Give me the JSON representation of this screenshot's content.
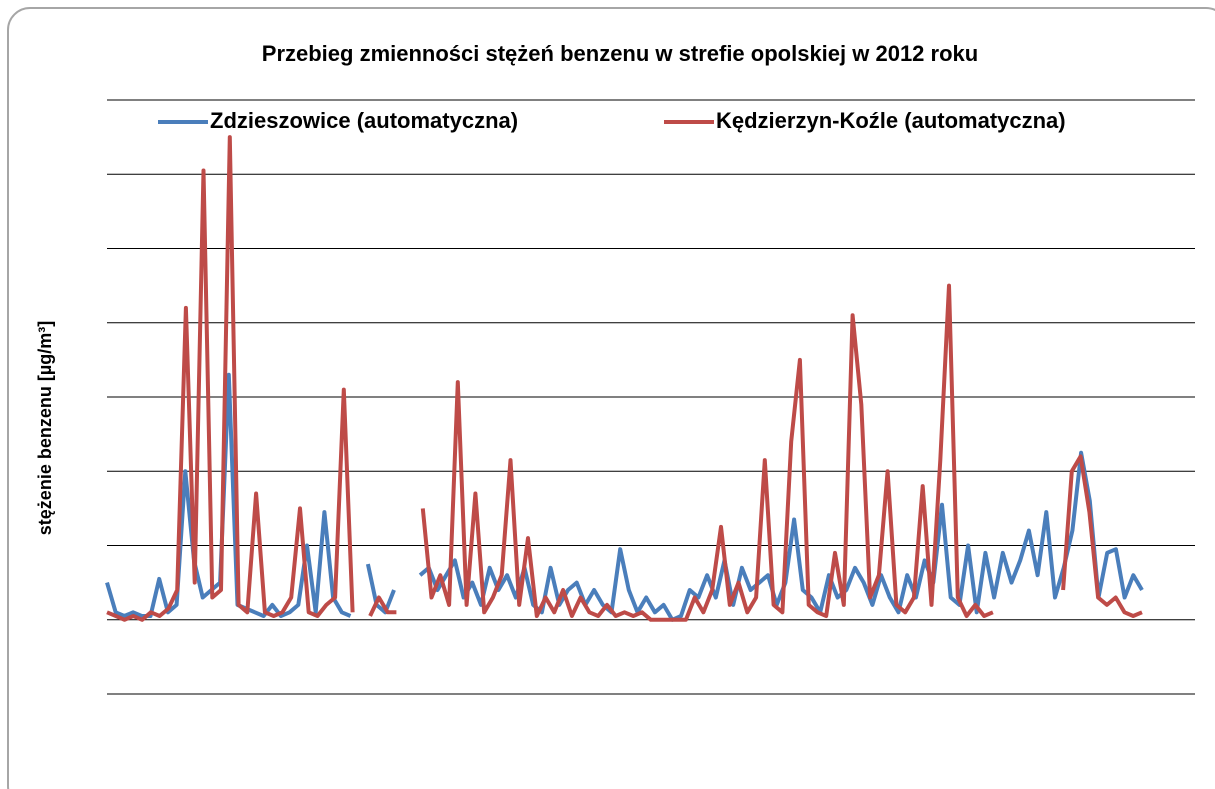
{
  "chart_data": {
    "type": "line",
    "title": "Przebieg zmienności stężeń  benzenu w strefie opolskiej w 2012 roku",
    "y_label": "stężenie benzenu [µg/m³]",
    "ylim": [
      -1,
      7
    ],
    "yticks": [
      -1,
      0,
      1,
      2,
      3,
      4,
      5,
      6,
      7
    ],
    "grid": true,
    "legend": "top",
    "series": [
      {
        "name": "Zdzieszowice (automatyczna)",
        "color": "#4a7ebb",
        "values": [
          0.5,
          0.1,
          0.05,
          0.1,
          0.05,
          0.05,
          0.55,
          0.1,
          0.2,
          2.0,
          0.8,
          0.3,
          0.4,
          0.5,
          3.3,
          0.2,
          0.15,
          0.1,
          0.05,
          0.2,
          0.05,
          0.1,
          0.2,
          1.0,
          0.1,
          1.45,
          0.3,
          0.1,
          0.05,
          null,
          0.75,
          0.2,
          0.1,
          0.4,
          null,
          null,
          0.6,
          0.7,
          0.4,
          0.6,
          0.8,
          0.3,
          0.5,
          0.2,
          0.7,
          0.4,
          0.6,
          0.3,
          0.7,
          0.2,
          0.1,
          0.7,
          0.2,
          0.4,
          0.5,
          0.2,
          0.4,
          0.2,
          0.1,
          0.95,
          0.4,
          0.1,
          0.3,
          0.1,
          0.2,
          0.0,
          0.05,
          0.4,
          0.3,
          0.6,
          0.3,
          0.8,
          0.2,
          0.7,
          0.4,
          0.5,
          0.6,
          0.2,
          0.5,
          1.35,
          0.4,
          0.3,
          0.1,
          0.6,
          0.3,
          0.4,
          0.7,
          0.5,
          0.2,
          0.6,
          0.3,
          0.1,
          0.6,
          0.3,
          0.8,
          0.5,
          1.55,
          0.3,
          0.2,
          1.0,
          0.1,
          0.9,
          0.3,
          0.9,
          0.5,
          0.8,
          1.2,
          0.6,
          1.45,
          0.3,
          0.7,
          1.2,
          2.25,
          1.6,
          0.3,
          0.9,
          0.95,
          0.3,
          0.6,
          0.4
        ]
      },
      {
        "name": "Kędzierzyn-Koźle (automatyczna)",
        "color": "#be4b48",
        "values": [
          0.1,
          0.05,
          0,
          0.05,
          0,
          0.1,
          0.05,
          0.15,
          0.4,
          4.2,
          0.5,
          6.05,
          0.3,
          0.4,
          6.5,
          0.2,
          0.1,
          1.7,
          0.1,
          0.05,
          0.1,
          0.3,
          1.5,
          0.1,
          0.05,
          0.2,
          0.3,
          3.1,
          0.1,
          null,
          0.05,
          0.3,
          0.1,
          0.1,
          null,
          null,
          1.5,
          0.3,
          0.6,
          0.2,
          3.2,
          0.2,
          1.7,
          0.1,
          0.3,
          0.6,
          2.15,
          0.2,
          1.1,
          0.05,
          0.3,
          0.1,
          0.4,
          0.05,
          0.3,
          0.1,
          0.05,
          0.2,
          0.05,
          0.1,
          0.05,
          0.1,
          0,
          0,
          0,
          0,
          0,
          0.3,
          0.1,
          0.4,
          1.25,
          0.2,
          0.5,
          0.1,
          0.3,
          2.15,
          0.2,
          0.1,
          2.4,
          3.5,
          0.2,
          0.1,
          0.05,
          0.9,
          0.2,
          4.1,
          2.9,
          0.3,
          0.6,
          2.0,
          0.2,
          0.1,
          0.3,
          1.8,
          0.2,
          2.15,
          4.5,
          0.3,
          0.05,
          0.2,
          0.05,
          0.1,
          null,
          null,
          null,
          null,
          null,
          null,
          null,
          0.4,
          2.0,
          2.2,
          1.45,
          0.3,
          0.2,
          0.3,
          0.1,
          0.05,
          0.1
        ]
      }
    ]
  }
}
